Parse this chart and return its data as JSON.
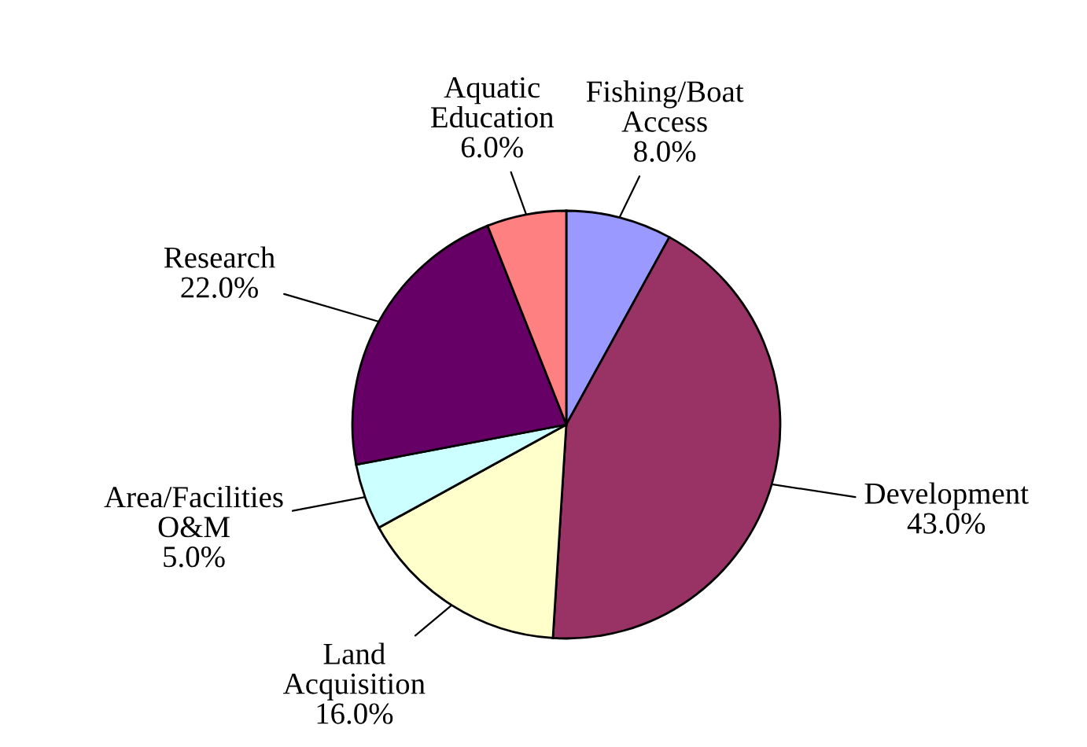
{
  "chart_data": {
    "type": "pie",
    "categories": [
      "Fishing/Boat\nAccess",
      "Development",
      "Land\nAcquisition",
      "Area/Facilities\nO&M",
      "Research",
      "Aquatic\nEducation"
    ],
    "values": [
      8.0,
      43.0,
      16.0,
      5.0,
      22.0,
      6.0
    ],
    "value_labels": [
      "8.0%",
      "43.0%",
      "16.0%",
      "5.0%",
      "22.0%",
      "6.0%"
    ],
    "colors": [
      "#9999ff",
      "#993366",
      "#ffffcc",
      "#ccffff",
      "#660066",
      "#ff8080"
    ],
    "legend": false
  }
}
